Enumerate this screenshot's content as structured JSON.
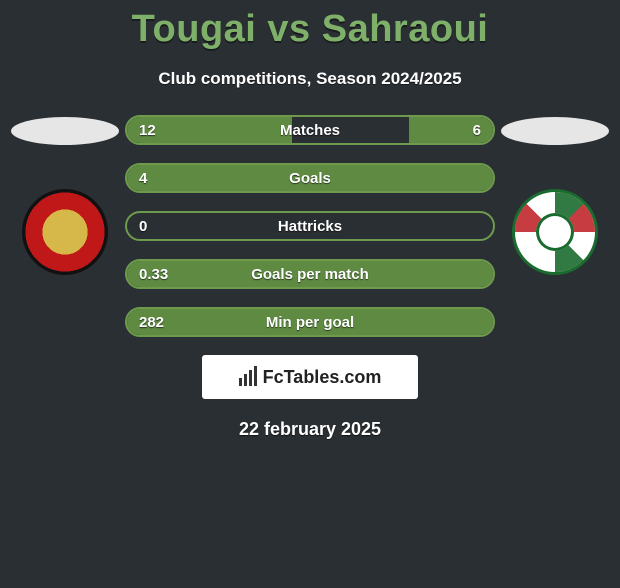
{
  "title": "Tougai vs Sahraoui",
  "subtitle": "Club competitions, Season 2024/2025",
  "date": "22 february 2025",
  "logo_text": "FcTables.com",
  "colors": {
    "background": "#2a2f33",
    "title": "#7fb069",
    "bar_border": "#6e9a4e",
    "bar_fill": "#5e8a42",
    "text": "#ffffff"
  },
  "bars": [
    {
      "label": "Matches",
      "left": "12",
      "right": "6",
      "left_pct": 45,
      "right_pct": 23
    },
    {
      "label": "Goals",
      "left": "4",
      "right": "",
      "left_pct": 100,
      "right_pct": 0
    },
    {
      "label": "Hattricks",
      "left": "0",
      "right": "",
      "left_pct": 0,
      "right_pct": 0
    },
    {
      "label": "Goals per match",
      "left": "0.33",
      "right": "",
      "left_pct": 100,
      "right_pct": 0
    },
    {
      "label": "Min per goal",
      "left": "282",
      "right": "",
      "left_pct": 100,
      "right_pct": 0
    }
  ],
  "left_player": {
    "oval_alt": "player-silhouette",
    "club": "Esperance"
  },
  "right_player": {
    "oval_alt": "player-silhouette",
    "club": "Stade Tunisien"
  }
}
